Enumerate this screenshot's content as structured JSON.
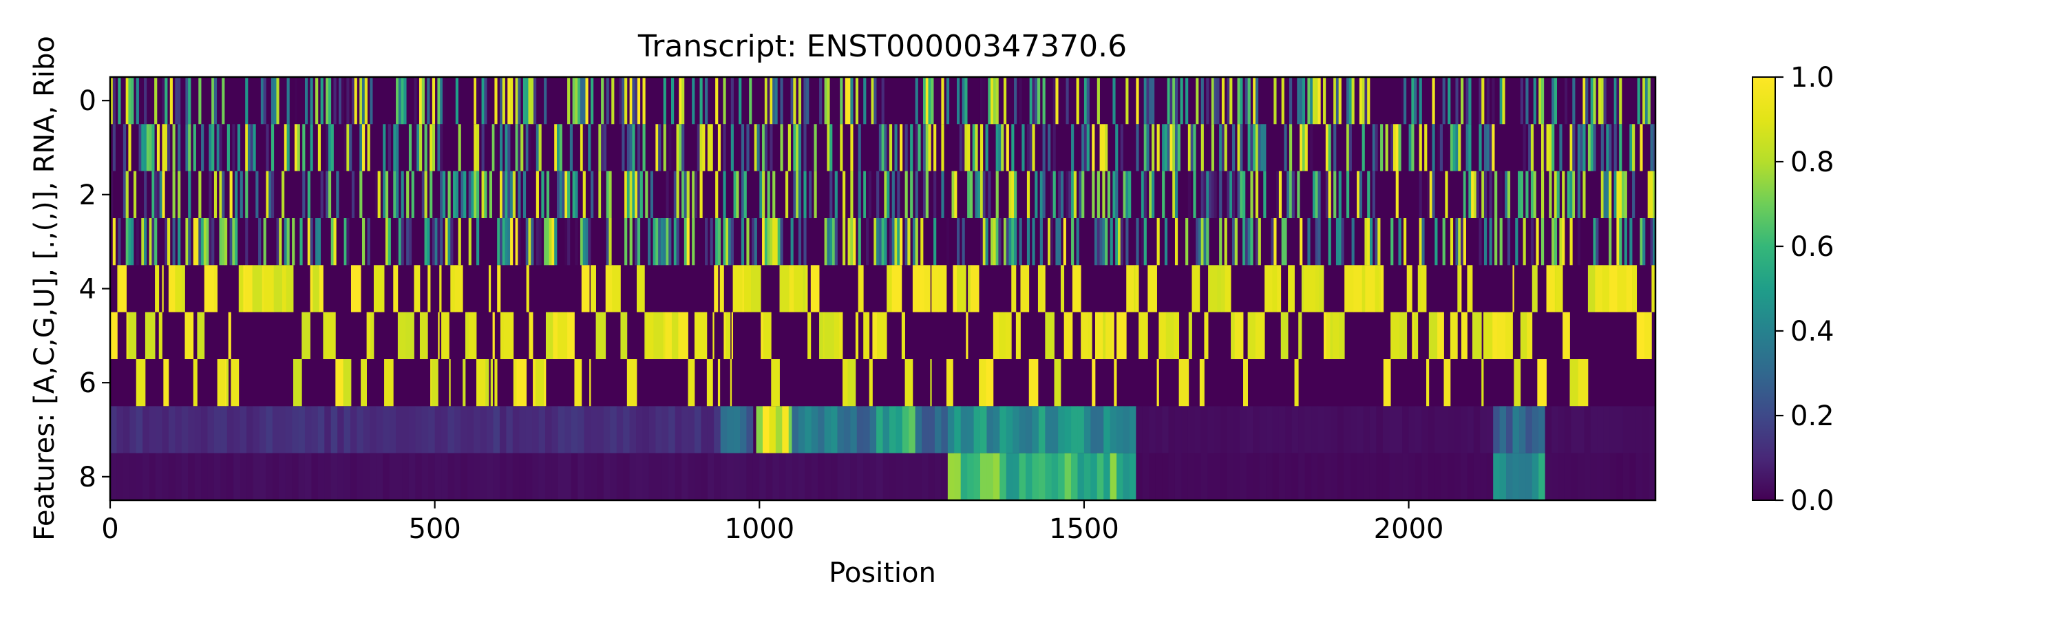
{
  "chart_data": {
    "type": "heatmap",
    "title": "Transcript: ENST00000347370.6",
    "xlabel": "Position",
    "ylabel": "Features: [A,C,G,U], [.,(,)], RNA, Ribo",
    "xlim": [
      0,
      2380
    ],
    "ylim": [
      8.5,
      -0.5
    ],
    "rows": 9,
    "columns": 2380,
    "x_ticks": [
      0,
      500,
      1000,
      1500,
      2000
    ],
    "y_ticks": [
      0,
      2,
      4,
      6,
      8
    ],
    "colormap": "viridis",
    "colorbar": {
      "min": 0.0,
      "max": 1.0,
      "ticks": [
        "0.0",
        "0.2",
        "0.4",
        "0.6",
        "0.8",
        "1.0"
      ]
    },
    "row_descriptions": {
      "0-3": "one-hot nucleotide A, C, G, U (0 or 1)",
      "4-6": "one-hot structure '.', '(', ')' (0 or 1)",
      "7": "RNA coverage (normalized 0-1)",
      "8": "Ribo coverage (normalized 0-1)"
    },
    "rna_segments": [
      {
        "x": [
          0,
          940
        ],
        "level": 0.12
      },
      {
        "x": [
          940,
          990
        ],
        "level": 0.3
      },
      {
        "x": [
          995,
          1050
        ],
        "level": 0.9
      },
      {
        "x": [
          1050,
          1180
        ],
        "level": 0.35
      },
      {
        "x": [
          1180,
          1240
        ],
        "level": 0.55
      },
      {
        "x": [
          1240,
          1290
        ],
        "level": 0.3
      },
      {
        "x": [
          1290,
          1580
        ],
        "level": 0.45
      },
      {
        "x": [
          1580,
          2130
        ],
        "level": 0.03
      },
      {
        "x": [
          2130,
          2210
        ],
        "level": 0.3
      },
      {
        "x": [
          2210,
          2380
        ],
        "level": 0.03
      }
    ],
    "ribo_segments": [
      {
        "x": [
          0,
          1290
        ],
        "level": 0.03
      },
      {
        "x": [
          1290,
          1580
        ],
        "level": 0.6
      },
      {
        "x": [
          1580,
          2130
        ],
        "level": 0.02
      },
      {
        "x": [
          2130,
          2210
        ],
        "level": 0.5
      },
      {
        "x": [
          2210,
          2380
        ],
        "level": 0.02
      }
    ]
  }
}
